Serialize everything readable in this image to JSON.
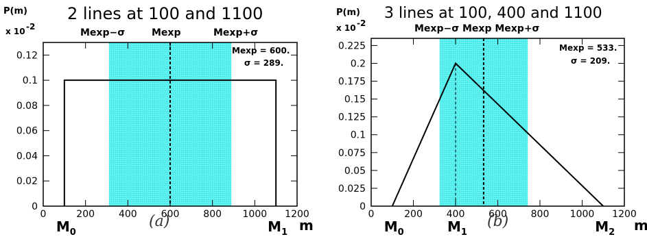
{
  "chart_data": [
    {
      "type": "line",
      "title": "2 lines at 100 and 1100",
      "ylabel": "P(m)",
      "yscale_label": "x 10",
      "yscale_exp": "-2",
      "xlabel": "m",
      "xlim": [
        0,
        1200
      ],
      "ylim": [
        0,
        0.13
      ],
      "xticks": [
        0,
        200,
        400,
        600,
        800,
        1000,
        1200
      ],
      "yticks": [
        0,
        0.02,
        0.04,
        0.06,
        0.08,
        0.1,
        0.12
      ],
      "series": [
        {
          "x": [
            100,
            100,
            1100,
            1100
          ],
          "y": [
            0,
            0.1,
            0.1,
            0
          ]
        }
      ],
      "band": [
        311,
        889
      ],
      "mean": 600,
      "stats": [
        "Mexp = 600.",
        "σ = 289."
      ],
      "band_labels": [
        "Mexp−σ",
        "Mexp",
        "Mexp+σ"
      ],
      "markers": [
        {
          "x": 100,
          "label": "M",
          "sub": "0"
        },
        {
          "x": 1100,
          "label": "M",
          "sub": "1"
        }
      ],
      "panel_label": "(a)"
    },
    {
      "type": "line",
      "title": "3 lines at 100, 400 and 1100",
      "ylabel": "P(m)",
      "yscale_label": "x 10",
      "yscale_exp": "-2",
      "xlabel": "m",
      "xlim": [
        0,
        1200
      ],
      "ylim": [
        0,
        0.235
      ],
      "xticks": [
        0,
        200,
        400,
        600,
        800,
        1000,
        1200
      ],
      "yticks": [
        0,
        0.025,
        0.05,
        0.075,
        0.1,
        0.125,
        0.15,
        0.175,
        0.2,
        0.225
      ],
      "series": [
        {
          "x": [
            100,
            400,
            1100
          ],
          "y": [
            0,
            0.2,
            0
          ]
        }
      ],
      "band": [
        324,
        742
      ],
      "mean": 533,
      "peak": 400,
      "stats": [
        "Mexp = 533.",
        "σ = 209."
      ],
      "band_labels": [
        "Mexp−σ Mexp Mexp+σ"
      ],
      "markers": [
        {
          "x": 100,
          "label": "M",
          "sub": "0"
        },
        {
          "x": 400,
          "label": "M",
          "sub": "1"
        },
        {
          "x": 1100,
          "label": "M",
          "sub": "2"
        }
      ],
      "panel_label": "(b)"
    }
  ],
  "colors": {
    "band": "#38e8e8",
    "line": "#000000"
  }
}
